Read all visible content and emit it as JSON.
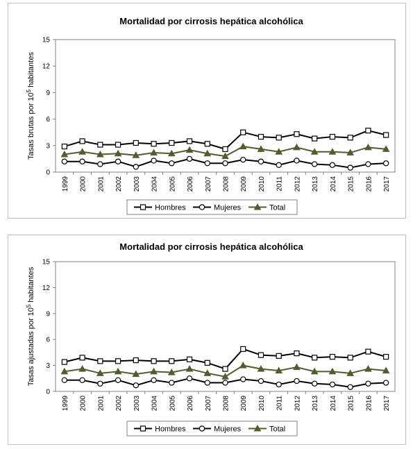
{
  "chart_data": [
    {
      "type": "line",
      "title": "Mortalidad por cirrosis hepática alcohólica",
      "ylabel_prefix": "Tasas brutas por 10",
      "ylabel_sup": "5",
      "ylabel_suffix": " habitantes",
      "xlabel": "",
      "ylim": [
        0,
        15
      ],
      "yticks": [
        "0",
        "3",
        "6",
        "9",
        "12",
        "15"
      ],
      "grid": false,
      "legend": "bottom",
      "categories": [
        "1999",
        "2000",
        "2001",
        "2002",
        "2003",
        "2004",
        "2005",
        "2006",
        "2007",
        "2008",
        "2009",
        "2010",
        "2011",
        "2012",
        "2013",
        "2014",
        "2015",
        "2016",
        "2017"
      ],
      "series": [
        {
          "name": "Hombres",
          "marker": "square",
          "color": "#000000",
          "values": [
            2.9,
            3.5,
            3.1,
            3.1,
            3.3,
            3.2,
            3.3,
            3.5,
            3.2,
            2.6,
            4.5,
            4.0,
            3.9,
            4.3,
            3.8,
            4.0,
            3.9,
            4.7,
            4.2
          ]
        },
        {
          "name": "Mujeres",
          "marker": "circle",
          "color": "#000000",
          "values": [
            1.2,
            1.2,
            0.9,
            1.2,
            0.6,
            1.3,
            1.0,
            1.5,
            1.0,
            1.0,
            1.4,
            1.2,
            0.8,
            1.3,
            0.9,
            0.8,
            0.5,
            0.9,
            1.0
          ]
        },
        {
          "name": "Total",
          "marker": "triangle",
          "color": "#4f5d2f",
          "values": [
            2.0,
            2.3,
            2.0,
            2.1,
            1.9,
            2.2,
            2.1,
            2.5,
            2.1,
            1.8,
            2.9,
            2.6,
            2.3,
            2.8,
            2.3,
            2.3,
            2.2,
            2.8,
            2.6
          ]
        }
      ]
    },
    {
      "type": "line",
      "title": "Mortalidad por cirrosis hepática alcohólica",
      "ylabel_prefix": "Tasas ajustadas por 10",
      "ylabel_sup": "5",
      "ylabel_suffix": " habitantes",
      "xlabel": "",
      "ylim": [
        0,
        15
      ],
      "yticks": [
        "0",
        "3",
        "6",
        "9",
        "12",
        "15"
      ],
      "grid": false,
      "legend": "bottom",
      "categories": [
        "1999",
        "2000",
        "2001",
        "2002",
        "2003",
        "2004",
        "2005",
        "2006",
        "2007",
        "2008",
        "2009",
        "2010",
        "2011",
        "2012",
        "2013",
        "2014",
        "2015",
        "2016",
        "2017"
      ],
      "series": [
        {
          "name": "Hombres",
          "marker": "square",
          "color": "#000000",
          "values": [
            3.4,
            3.9,
            3.5,
            3.5,
            3.6,
            3.5,
            3.5,
            3.7,
            3.3,
            2.6,
            4.9,
            4.2,
            4.1,
            4.4,
            3.9,
            4.0,
            3.9,
            4.6,
            4.0
          ]
        },
        {
          "name": "Mujeres",
          "marker": "circle",
          "color": "#000000",
          "values": [
            1.3,
            1.3,
            0.9,
            1.3,
            0.7,
            1.3,
            1.0,
            1.5,
            1.0,
            1.0,
            1.4,
            1.2,
            0.8,
            1.2,
            0.9,
            0.8,
            0.5,
            0.9,
            1.0
          ]
        },
        {
          "name": "Total",
          "marker": "triangle",
          "color": "#4f5d2f",
          "values": [
            2.3,
            2.6,
            2.1,
            2.3,
            2.0,
            2.3,
            2.2,
            2.6,
            2.1,
            1.7,
            3.0,
            2.6,
            2.4,
            2.8,
            2.3,
            2.3,
            2.1,
            2.6,
            2.4
          ]
        }
      ]
    }
  ]
}
